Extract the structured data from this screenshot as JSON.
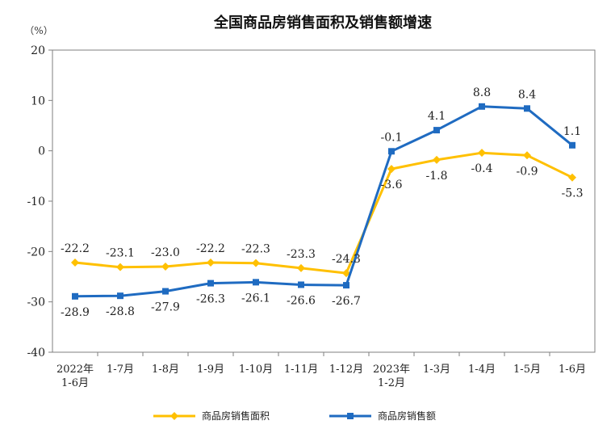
{
  "chart_data": {
    "type": "line",
    "title": "全国商品房销售面积及销售额增速",
    "unit": "（%）",
    "categories": [
      [
        "2022年",
        "1-6月"
      ],
      [
        "1-7月"
      ],
      [
        "1-8月"
      ],
      [
        "1-9月"
      ],
      [
        "1-10月"
      ],
      [
        "1-11月"
      ],
      [
        "1-12月"
      ],
      [
        "2023年",
        "1-2月"
      ],
      [
        "1-3月"
      ],
      [
        "1-4月"
      ],
      [
        "1-5月"
      ],
      [
        "1-6月"
      ]
    ],
    "ylim": [
      -40,
      20
    ],
    "yticks": [
      20,
      10,
      0,
      -10,
      -20,
      -30,
      -40
    ],
    "grid": false,
    "legend_position": "bottom",
    "series": [
      {
        "name": "商品房销售面积",
        "color": "#FFC000",
        "marker": "diamond",
        "label_position": [
          "above",
          "above",
          "above",
          "above",
          "above",
          "above",
          "above",
          "below",
          "below",
          "below",
          "below",
          "below"
        ],
        "values": [
          -22.2,
          -23.1,
          -23.0,
          -22.2,
          -22.3,
          -23.3,
          -24.3,
          -3.6,
          -1.8,
          -0.4,
          -0.9,
          -5.3
        ],
        "labels": [
          "-22.2",
          "-23.1",
          "-23.0",
          "-22.2",
          "-22.3",
          "-23.3",
          "-24.3",
          "-3.6",
          "-1.8",
          "-0.4",
          "-0.9",
          "-5.3"
        ]
      },
      {
        "name": "商品房销售额",
        "color": "#1F6BC1",
        "marker": "square",
        "label_position": [
          "below",
          "below",
          "below",
          "below",
          "below",
          "below",
          "below",
          "above",
          "above",
          "above",
          "above",
          "above"
        ],
        "values": [
          -28.9,
          -28.8,
          -27.9,
          -26.3,
          -26.1,
          -26.6,
          -26.7,
          -0.1,
          4.1,
          8.8,
          8.4,
          1.1
        ],
        "labels": [
          "-28.9",
          "-28.8",
          "-27.9",
          "-26.3",
          "-26.1",
          "-26.6",
          "-26.7",
          "-0.1",
          "4.1",
          "8.8",
          "8.4",
          "1.1"
        ]
      }
    ]
  }
}
